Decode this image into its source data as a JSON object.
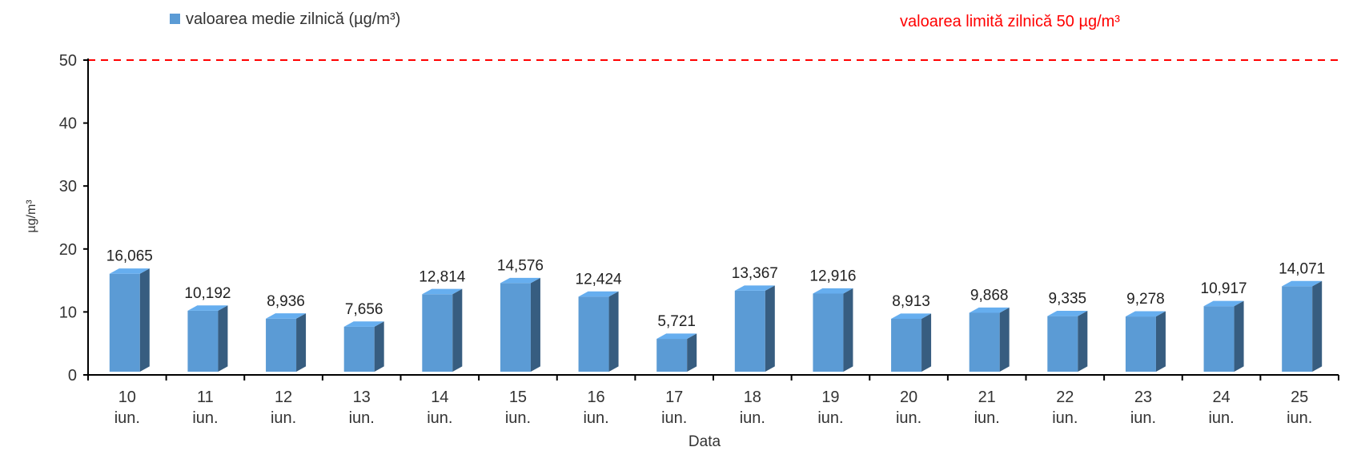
{
  "chart_data": {
    "type": "bar",
    "title": "",
    "xlabel": "Data",
    "ylabel": "µg/m³",
    "ylim": [
      0,
      50
    ],
    "yticks": [
      "0",
      "10",
      "20",
      "30",
      "40",
      "50"
    ],
    "grid": false,
    "legend_position": "top-left",
    "categories": [
      [
        "10",
        "iun."
      ],
      [
        "11",
        "iun."
      ],
      [
        "12",
        "iun."
      ],
      [
        "13",
        "iun."
      ],
      [
        "14",
        "iun."
      ],
      [
        "15",
        "iun."
      ],
      [
        "16",
        "iun."
      ],
      [
        "17",
        "iun."
      ],
      [
        "18",
        "iun."
      ],
      [
        "19",
        "iun."
      ],
      [
        "20",
        "iun."
      ],
      [
        "21",
        "iun."
      ],
      [
        "22",
        "iun."
      ],
      [
        "23",
        "iun."
      ],
      [
        "24",
        "iun."
      ],
      [
        "25",
        "iun."
      ]
    ],
    "series": [
      {
        "name": "valoarea medie zilnică (µg/m³)",
        "color": "#5b9bd5",
        "values": [
          16.065,
          10.192,
          8.936,
          7.656,
          12.814,
          14.576,
          12.424,
          5.721,
          13.367,
          12.916,
          8.913,
          9.868,
          9.335,
          9.278,
          10.917,
          14.071
        ],
        "labels": [
          "16,065",
          "10,192",
          "8,936",
          "7,656",
          "12,814",
          "14,576",
          "12,424",
          "5,721",
          "13,367",
          "12,916",
          "8,913",
          "9,868",
          "9,335",
          "9,278",
          "10,917",
          "14,071"
        ]
      }
    ],
    "reference_line": {
      "label": "valoarea limită zilnică 50 µg/m³",
      "value": 50,
      "color": "#ff0000",
      "style": "dashed"
    }
  }
}
